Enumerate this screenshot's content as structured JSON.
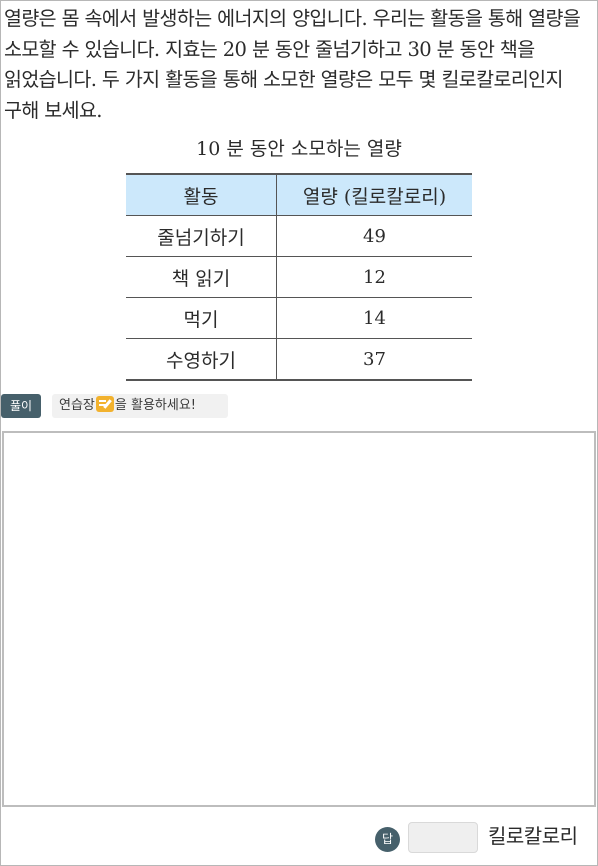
{
  "question": {
    "text": "열량은 몸 속에서 발생하는 에너지의 양입니다. 우리는 활동을 통해 열량을 소모할 수 있습니다. 지효는 20 분 동안 줄넘기하고 30 분 동안 책을 읽었습니다. 두 가지 활동을 통해 소모한 열량은 모두 몇 킬로칼로리인지 구해 보세요."
  },
  "table": {
    "title": "10 분 동안 소모하는 열량",
    "headers": [
      "활동",
      "열량 (킬로칼로리)"
    ],
    "rows": [
      {
        "activity": "줄넘기하기",
        "calories": "49"
      },
      {
        "activity": "책 읽기",
        "calories": "12"
      },
      {
        "activity": "먹기",
        "calories": "14"
      },
      {
        "activity": "수영하기",
        "calories": "37"
      }
    ]
  },
  "tools": {
    "solution_label": "풀이",
    "practice_before": "연습장",
    "practice_icon": "memo-pencil-icon",
    "practice_after": "을 활용하세요!"
  },
  "answer": {
    "badge_label": "답",
    "value": "",
    "placeholder": "",
    "unit": "킬로칼로리"
  },
  "colors": {
    "table_header_bg": "#cce8fb",
    "badge_bg": "#46606b",
    "memo_icon": "#f2b22e"
  }
}
